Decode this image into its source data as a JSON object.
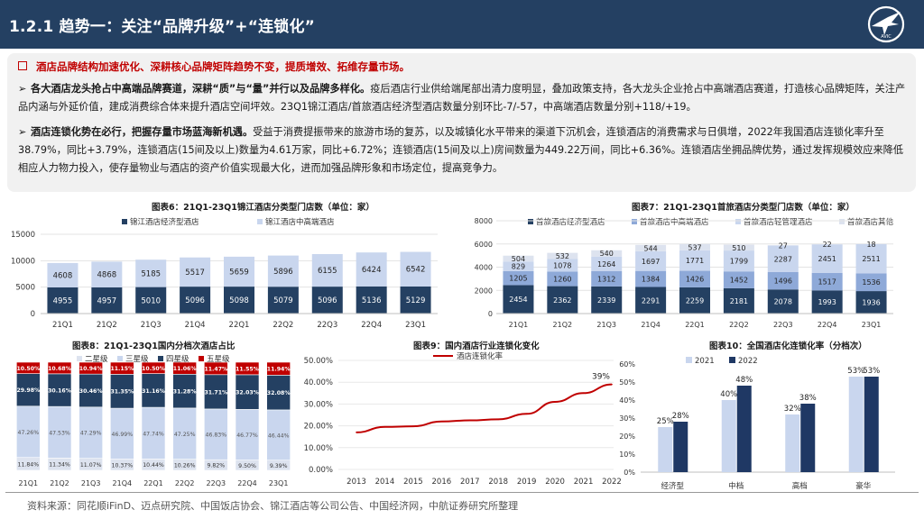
{
  "header": {
    "title": "1.2.1 趋势一：关注“品牌升级”+“连锁化”"
  },
  "summary": {
    "headline": "酒店品牌结构加速优化、深耕核心品牌矩阵趋势不变，提质增效、拓维存量市场。",
    "p1_bold": "各大酒店龙头抢占中高端品牌赛道，深耕“质”与“量”并行以及品牌多样化。",
    "p1_text": "疫后酒店行业供给端尾部出清力度明显，叠加政策支持，各大龙头企业抢占中高端酒店赛道，打造核心品牌矩阵，关注产品内涵与外延价值，建成消费综合体来提升酒店空间坪效。23Q1锦江酒店/首旅酒店经济型酒店数量分别环比-7/-57，中高端酒店数量分别+118/+19。",
    "p2_bold": "酒店连锁化势在必行，把握存量市场蓝海新机遇。",
    "p2_text": "受益于消费提振带来的旅游市场的复苏，以及城镇化水平带来的渠道下沉机会，连锁酒店的消费需求与日俱增，2022年我国酒店连锁化率升至38.79%，同比+3.79%，连锁酒店(15间及以上)数量为4.61万家，同比+6.72%；连锁酒店(15间及以上)房间数量为449.22万间，同比+6.36%。连锁酒店坐拥品牌优势，通过发挥规模效应来降低相应人力物力投入，使存量物业与酒店的资产价值实现最大化，进而加强品牌形象和市场定位，提高竞争力。"
  },
  "colors": {
    "navy": "#244062",
    "mid": "#8ea9d8",
    "light": "#c9d6ee",
    "pale": "#dde3ef",
    "red": "#c00000",
    "dark": "#1f3864"
  },
  "chart_data": [
    {
      "id": "fig6",
      "type": "bar",
      "stacked": true,
      "title": "图表6：21Q1-23Q1锦江酒店分类型门店数（单位：家）",
      "categories": [
        "21Q1",
        "21Q2",
        "21Q3",
        "21Q4",
        "22Q1",
        "22Q2",
        "22Q3",
        "22Q4",
        "23Q1"
      ],
      "series": [
        {
          "name": "锦江酒店经济型酒店",
          "values": [
            4955,
            4957,
            5010,
            5096,
            5098,
            5079,
            5096,
            5136,
            5129
          ]
        },
        {
          "name": "锦江酒店中高端酒店",
          "values": [
            4608,
            4868,
            5185,
            5517,
            5659,
            5896,
            6155,
            6424,
            6542
          ]
        }
      ],
      "yticks": [
        "0",
        "5000",
        "10000",
        "15000"
      ],
      "ylim": [
        0,
        15000
      ]
    },
    {
      "id": "fig7",
      "type": "bar",
      "stacked": true,
      "title": "图表7：21Q1-23Q1首旅酒店分类型门店数（单位：家）",
      "categories": [
        "21Q1",
        "21Q2",
        "21Q3",
        "21Q4",
        "22Q1",
        "22Q2",
        "22Q3",
        "22Q4",
        "23Q1"
      ],
      "series": [
        {
          "name": "首旅酒店经济型酒店",
          "values": [
            2454,
            2362,
            2339,
            2291,
            2259,
            2181,
            2078,
            1993,
            1936
          ]
        },
        {
          "name": "首旅酒店中高端酒店",
          "values": [
            1205,
            1260,
            1312,
            1384,
            1426,
            1452,
            1496,
            1517,
            1536
          ]
        },
        {
          "name": "首旅酒店轻管理酒店",
          "values": [
            829,
            1078,
            1264,
            1697,
            1771,
            1799,
            2287,
            2451,
            2511
          ]
        },
        {
          "name": "首旅酒店其他",
          "values": [
            504,
            532,
            540,
            544,
            537,
            510,
            27,
            22,
            18
          ]
        }
      ],
      "yticks": [
        "0",
        "2000",
        "4000",
        "6000",
        "8000"
      ],
      "ylim": [
        0,
        8000
      ]
    },
    {
      "id": "fig8",
      "type": "bar",
      "stacked": true,
      "percent": true,
      "title": "图表8：21Q1-23Q1国内分档次酒店占比",
      "categories": [
        "21Q1",
        "21Q2",
        "21Q3",
        "21Q4",
        "22Q1",
        "22Q2",
        "22Q3",
        "22Q4",
        "23Q1"
      ],
      "series": [
        {
          "name": "二星级",
          "values": [
            11.84,
            11.34,
            11.07,
            10.37,
            10.44,
            10.26,
            9.82,
            9.5,
            9.39
          ],
          "labels": [
            "11.84%",
            "11.34%",
            "11.07%",
            "10.37%",
            "10.44%",
            "10.26%",
            "9.82%",
            "9.50%",
            "9.39%"
          ]
        },
        {
          "name": "三星级",
          "values": [
            47.26,
            47.53,
            47.29,
            46.99,
            47.74,
            47.25,
            46.83,
            46.77,
            46.44
          ],
          "labels": [
            "47.26%",
            "47.53%",
            "47.29%",
            "46.99%",
            "47.74%",
            "47.25%",
            "46.83%",
            "46.77%",
            "46.44%"
          ]
        },
        {
          "name": "四星级",
          "values": [
            29.98,
            30.16,
            30.46,
            31.35,
            31.16,
            31.28,
            31.71,
            32.03,
            32.08
          ],
          "labels": [
            "29.98%",
            "30.16%",
            "30.46%",
            "31.35%",
            "31.16%",
            "31.28%",
            "31.71%",
            "32.03%",
            "32.08%"
          ]
        },
        {
          "name": "五星级",
          "values": [
            10.5,
            10.68,
            10.94,
            11.15,
            10.5,
            11.06,
            11.47,
            11.55,
            11.94
          ],
          "labels": [
            "10.50%",
            "10.68%",
            "10.94%",
            "11.15%",
            "10.50%",
            "11.06%",
            "11.47%",
            "11.55%",
            "11.94%"
          ]
        }
      ]
    },
    {
      "id": "fig9",
      "type": "line",
      "title": "图表9：国内酒店行业连锁化变化",
      "series": [
        {
          "name": "酒店连锁化率",
          "values": [
            17,
            19.5,
            19.8,
            22,
            22.5,
            23,
            25.5,
            31,
            35,
            39
          ]
        }
      ],
      "x": [
        "2013",
        "2014",
        "2015",
        "2016",
        "2017",
        "2018",
        "2019",
        "2020",
        "2021",
        "2022"
      ],
      "yticks": [
        "0.00%",
        "10.00%",
        "20.00%",
        "30.00%",
        "40.00%",
        "50.00%"
      ],
      "ylim": [
        0,
        50
      ],
      "annotation": "39%"
    },
    {
      "id": "fig10",
      "type": "bar",
      "title": "图表10：全国酒店化连锁化率（分档次）",
      "categories": [
        "经济型",
        "中档",
        "高档",
        "豪华"
      ],
      "series": [
        {
          "name": "2021",
          "values": [
            25,
            40,
            32,
            53
          ],
          "labels": [
            "25%",
            "40%",
            "32%",
            "53%"
          ]
        },
        {
          "name": "2022",
          "values": [
            28,
            48,
            38,
            53
          ],
          "labels": [
            "28%",
            "48%",
            "38%",
            "53%"
          ]
        }
      ],
      "yticks": [
        "0%",
        "10%",
        "20%",
        "30%",
        "40%",
        "50%",
        "60%"
      ],
      "ylim": [
        0,
        60
      ]
    }
  ],
  "footer": {
    "source": "资料来源：同花顺iFinD、迈点研究院、中国饭店协会、锦江酒店等公司公告、中国经济网，中航证券研究所整理"
  }
}
